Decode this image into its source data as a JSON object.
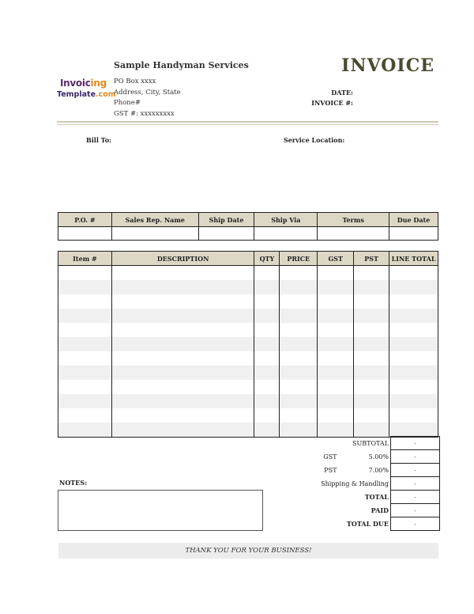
{
  "logo": {
    "line1a": "Invoic",
    "line1b": "ing",
    "line2a": "Template",
    "line2b": ".com"
  },
  "company": {
    "name": "Sample Handyman Services",
    "po_box": "PO Box xxxx",
    "address": "Address, City, State",
    "phone": "Phone#",
    "gst": "GST #: xxxxxxxxx"
  },
  "title": "INVOICE",
  "meta": {
    "date_label": "DATE:",
    "invoice_label": "INVOICE #:"
  },
  "bill_to_label": "Bill To:",
  "service_location_label": "Service Location:",
  "order_table": {
    "headers": [
      "P.O. #",
      "Sales Rep. Name",
      "Ship Date",
      "Ship Via",
      "Terms",
      "Due Date"
    ]
  },
  "items_table": {
    "headers": [
      "Item #",
      "DESCRIPTION",
      "QTY",
      "PRICE",
      "GST",
      "PST",
      "LINE TOTAL"
    ]
  },
  "summary": {
    "subtotal_label": "SUBTOTAL",
    "subtotal": "-",
    "gst_label": "GST",
    "gst_rate": "5.00%",
    "gst": "-",
    "pst_label": "PST",
    "pst_rate": "7.00%",
    "pst": "-",
    "shipping_label": "Shipping & Handling",
    "shipping": "-",
    "total_label": "TOTAL",
    "total": "-",
    "paid_label": "PAID",
    "paid": "-",
    "total_due_label": "TOTAL DUE",
    "total_due": "-"
  },
  "notes_label": "NOTES:",
  "thanks": "THANK YOU FOR YOUR BUSINESS!"
}
